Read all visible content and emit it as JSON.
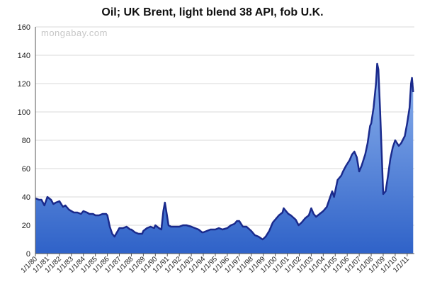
{
  "chart_data": {
    "type": "area",
    "title": "Oil; UK Brent, light blend 38 API, fob U.K.",
    "watermark": "mongabay.com",
    "xlabel": "",
    "ylabel": "",
    "ylim": [
      0,
      160
    ],
    "yticks": [
      0,
      20,
      40,
      60,
      80,
      100,
      120,
      140,
      160
    ],
    "xlim": [
      1980.0,
      2011.6
    ],
    "xtick_labels": [
      "1/1/80",
      "1/1/81",
      "1/1/82",
      "1/1/83",
      "1/1/84",
      "1/1/85",
      "1/1/86",
      "1/1/87",
      "1/1/88",
      "1/1/89",
      "1/1/90",
      "1/1/91",
      "1/1/92",
      "1/1/93",
      "1/1/94",
      "1/1/95",
      "1/1/96",
      "1/1/97",
      "1/1/98",
      "1/1/99",
      "1/1/00",
      "1/1/01",
      "1/1/02",
      "1/1/03",
      "1/1/04",
      "1/1/05",
      "1/1/06",
      "1/1/07",
      "1/1/08",
      "1/1/09",
      "1/1/10",
      "1/1/11"
    ],
    "grid": true,
    "legend": "none",
    "colors": {
      "line": "#1a2a8c",
      "fill_top": "#8fb4ee",
      "fill_bottom": "#2f62c8",
      "grid": "#d8d8d8"
    },
    "series": [
      {
        "x": [
          1980.0,
          1980.3,
          1980.5,
          1980.75,
          1981.0,
          1981.3,
          1981.5,
          1981.7,
          1982.0,
          1982.3,
          1982.5,
          1982.8,
          1983.0,
          1983.2,
          1983.5,
          1983.8,
          1984.0,
          1984.3,
          1984.5,
          1984.8,
          1985.0,
          1985.3,
          1985.6,
          1985.9,
          1986.0,
          1986.2,
          1986.4,
          1986.6,
          1986.8,
          1987.0,
          1987.3,
          1987.6,
          1987.9,
          1988.0,
          1988.3,
          1988.6,
          1988.9,
          1989.0,
          1989.3,
          1989.6,
          1989.9,
          1990.0,
          1990.3,
          1990.5,
          1990.67,
          1990.8,
          1990.95,
          1991.1,
          1991.3,
          1991.6,
          1992.0,
          1992.3,
          1992.6,
          1993.0,
          1993.3,
          1993.6,
          1993.9,
          1994.0,
          1994.3,
          1994.6,
          1995.0,
          1995.3,
          1995.6,
          1996.0,
          1996.3,
          1996.6,
          1996.8,
          1997.0,
          1997.3,
          1997.6,
          1998.0,
          1998.3,
          1998.6,
          1998.95,
          1999.2,
          1999.5,
          1999.8,
          2000.0,
          2000.3,
          2000.6,
          2000.7,
          2000.9,
          2001.1,
          2001.3,
          2001.7,
          2001.95,
          2002.2,
          2002.5,
          2002.8,
          2003.0,
          2003.2,
          2003.4,
          2003.7,
          2004.0,
          2004.3,
          2004.5,
          2004.75,
          2004.9,
          2005.2,
          2005.5,
          2005.65,
          2005.9,
          2006.2,
          2006.4,
          2006.6,
          2006.8,
          2007.0,
          2007.2,
          2007.5,
          2007.7,
          2007.9,
          2008.0,
          2008.2,
          2008.4,
          2008.5,
          2008.6,
          2008.75,
          2008.9,
          2009.0,
          2009.2,
          2009.4,
          2009.6,
          2009.8,
          2010.0,
          2010.3,
          2010.5,
          2010.8,
          2011.0,
          2011.2,
          2011.32,
          2011.4,
          2011.5
        ],
        "y": [
          39,
          38,
          38,
          34,
          40,
          38,
          35,
          36,
          37,
          33,
          34,
          31,
          30,
          29,
          29,
          28,
          30,
          29,
          28,
          28,
          27,
          27,
          28,
          28,
          27,
          19,
          14,
          12,
          15,
          18,
          18,
          19,
          17,
          17,
          15,
          14,
          14,
          16,
          18,
          19,
          18,
          20,
          18,
          17,
          30,
          36,
          28,
          20,
          19,
          19,
          19,
          20,
          20,
          19,
          18,
          17,
          15,
          15,
          16,
          17,
          17,
          18,
          17,
          18,
          20,
          21,
          23,
          23,
          19,
          19,
          16,
          13,
          12,
          10,
          12,
          16,
          22,
          24,
          27,
          29,
          32,
          30,
          28,
          27,
          24,
          20,
          22,
          25,
          27,
          32,
          28,
          26,
          28,
          30,
          33,
          38,
          44,
          40,
          52,
          55,
          58,
          62,
          66,
          70,
          72,
          68,
          58,
          62,
          70,
          78,
          90,
          92,
          103,
          120,
          134,
          130,
          100,
          65,
          42,
          44,
          55,
          67,
          75,
          80,
          76,
          78,
          83,
          92,
          103,
          120,
          124,
          114
        ]
      }
    ]
  }
}
